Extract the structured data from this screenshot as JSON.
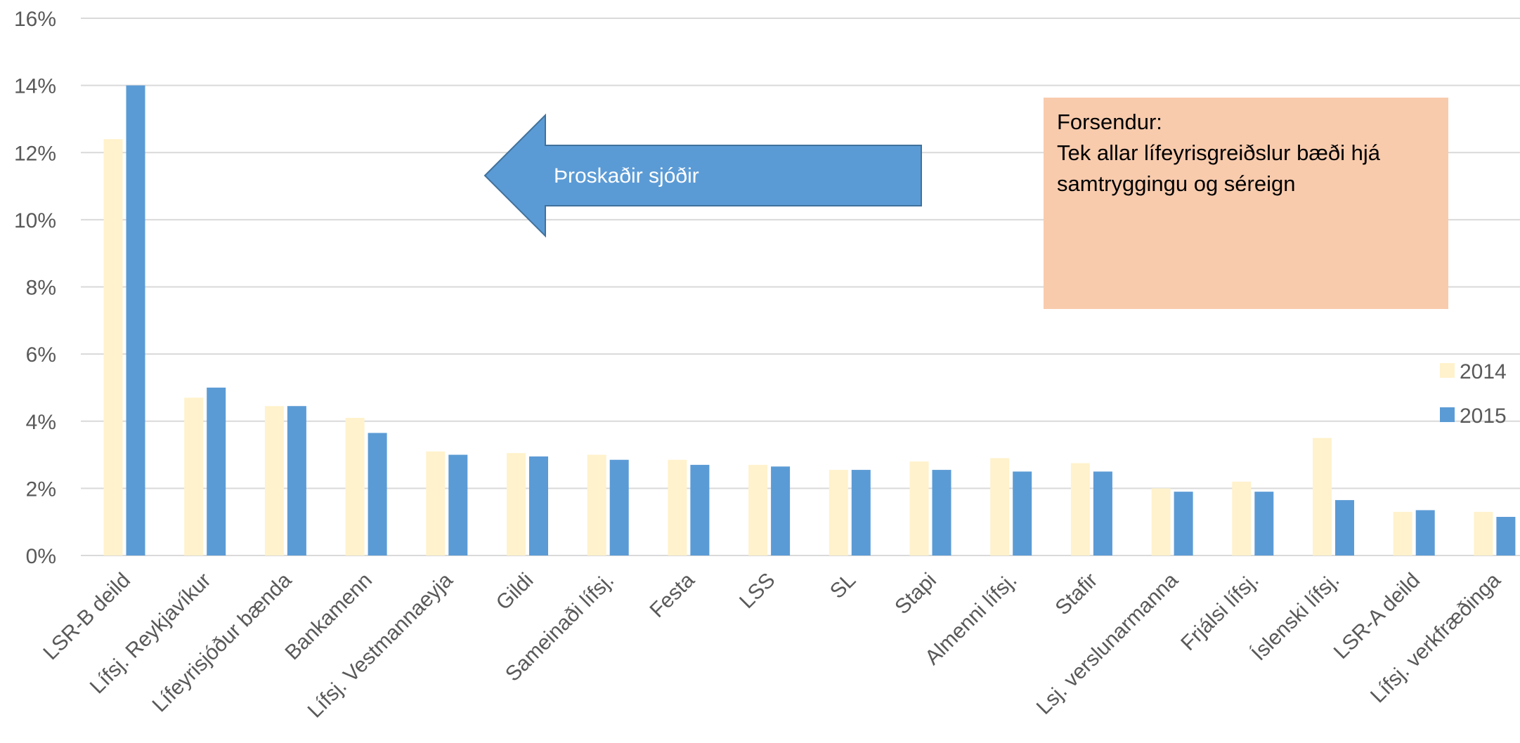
{
  "chart_data": {
    "type": "bar",
    "categories": [
      "LSR-B deild",
      "Lífsj. Reykjavíkur",
      "Lífeyrisjóður bænda",
      "Bankamenn",
      "Lífsj. Vestmannaeyja",
      "Gildi",
      "Sameinaði lífsj.",
      "Festa",
      "LSS",
      "SL",
      "Stapi",
      "Almenni lífsj.",
      "Stafir",
      "Lsj. verslunarmanna",
      "Frjálsi lífsj.",
      "Íslenski lífsj.",
      "LSR-A deild",
      "Lífsj. verkfræðinga"
    ],
    "series": [
      {
        "name": "2014",
        "color": "#fff2cc",
        "values": [
          12.4,
          4.7,
          4.45,
          4.1,
          3.1,
          3.05,
          3.0,
          2.85,
          2.7,
          2.55,
          2.8,
          2.9,
          2.75,
          2.0,
          2.2,
          3.5,
          1.3,
          1.3
        ]
      },
      {
        "name": "2015",
        "color": "#5b9bd5",
        "values": [
          14.0,
          5.0,
          4.45,
          3.65,
          3.0,
          2.95,
          2.85,
          2.7,
          2.65,
          2.55,
          2.55,
          2.5,
          2.5,
          1.9,
          1.9,
          1.65,
          1.35,
          1.15
        ]
      }
    ],
    "yticks": [
      "0%",
      "2%",
      "4%",
      "6%",
      "8%",
      "10%",
      "12%",
      "14%",
      "16%"
    ],
    "ylim": [
      0,
      16
    ],
    "grid": true,
    "legend_position": "right",
    "annotations": {
      "arrow_label": "Þroskaðir sjóðir",
      "note_lines": [
        "Forsendur:",
        "Tek allar lífeyrisgreiðslur bæði hjá",
        "samtryggingu og séreign"
      ]
    }
  },
  "colors": {
    "grid": "#d9d9d9",
    "text": "#595959",
    "arrow_fill": "#5b9bd5",
    "arrow_stroke": "#41719c",
    "note_fill": "#f8cbad"
  }
}
